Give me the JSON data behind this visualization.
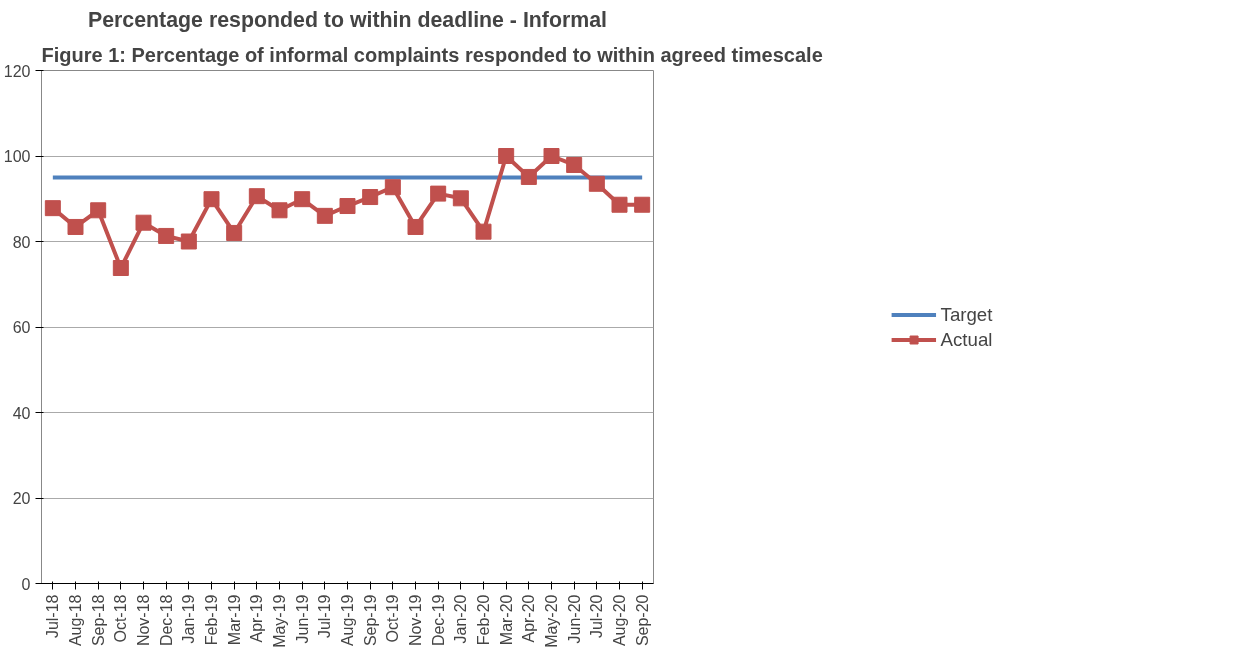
{
  "chart_data": {
    "type": "line",
    "title": "Percentage responded to within deadline - Informal",
    "annotations": [
      "Figure 1: Percentage of informal complaints responded to within agreed timescale"
    ],
    "categories": [
      "Jul-18",
      "Aug-18",
      "Sep-18",
      "Oct-18",
      "Nov-18",
      "Dec-18",
      "Jan-19",
      "Feb-19",
      "Mar-19",
      "Apr-19",
      "May-19",
      "Jun-19",
      "Jul-19",
      "Aug-19",
      "Sep-19",
      "Oct-19",
      "Nov-19",
      "Dec-19",
      "Jan-20",
      "Feb-20",
      "Mar-20",
      "Apr-20",
      "May-20",
      "Jun-20",
      "Jul-20",
      "Aug-20",
      "Sep-20"
    ],
    "series": [
      {
        "name": "Target",
        "color": "#4f81bd",
        "marker": "none",
        "values": [
          95,
          95,
          95,
          95,
          95,
          95,
          95,
          95,
          95,
          95,
          95,
          95,
          95,
          95,
          95,
          95,
          95,
          95,
          95,
          95,
          95,
          95,
          95,
          95,
          95,
          95,
          95
        ]
      },
      {
        "name": "Actual",
        "color": "#c0504d",
        "marker": "square",
        "values": [
          87.8,
          83.4,
          87.3,
          73.8,
          84.4,
          81.3,
          80,
          89.9,
          82,
          90.6,
          87.3,
          89.9,
          86,
          88.3,
          90.4,
          92.7,
          83.4,
          91.2,
          90.1,
          82.3,
          100,
          95.1,
          100,
          97.9,
          93.5,
          88.6,
          88.6
        ]
      }
    ],
    "ylim": [
      0,
      120
    ],
    "yticks": [
      0,
      20,
      40,
      60,
      80,
      100,
      120
    ],
    "grid": "y",
    "legend": "right"
  }
}
